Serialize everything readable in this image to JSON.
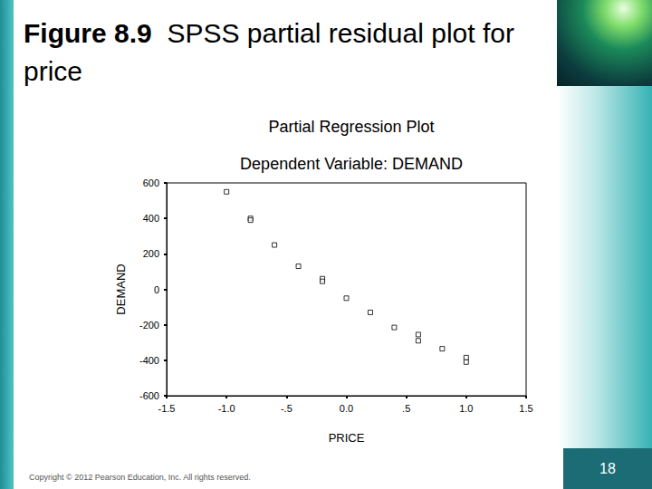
{
  "slide": {
    "figure": "Figure 8.9",
    "title": "SPSS partial residual plot for price",
    "copyright": "Copyright © 2012 Pearson Education, Inc. All rights reserved.",
    "page": 18
  },
  "chart_data": {
    "type": "scatter",
    "title": "Partial Regression Plot",
    "subtitle": "Dependent Variable: DEMAND",
    "x_label": "PRICE",
    "y_label": "DEMAND",
    "x": [
      -1.0,
      -0.8,
      -0.8,
      -0.6,
      -0.4,
      -0.2,
      -0.2,
      0.0,
      0.2,
      0.4,
      0.6,
      0.6,
      0.8,
      1.0,
      1.0
    ],
    "values": [
      550,
      400,
      390,
      250,
      130,
      60,
      45,
      -50,
      -130,
      -215,
      -255,
      -290,
      -335,
      -385,
      -410
    ],
    "color": "#000000",
    "marker": "square",
    "xlim": [
      -1.5,
      1.5
    ],
    "xticks": [
      -1.5,
      {
        "value": -1.0,
        "label": "-1.0"
      },
      {
        "value": -0.5,
        "label": "-.5"
      },
      {
        "value": 0.0,
        "label": "0.0"
      },
      {
        "value": 0.5,
        "label": ".5"
      },
      {
        "value": 1.0,
        "label": "1.0"
      },
      1.5
    ],
    "ylim": [
      -600,
      600
    ],
    "yticks": [
      -600,
      -400,
      -200,
      0,
      200,
      400,
      600
    ],
    "grid": false
  }
}
